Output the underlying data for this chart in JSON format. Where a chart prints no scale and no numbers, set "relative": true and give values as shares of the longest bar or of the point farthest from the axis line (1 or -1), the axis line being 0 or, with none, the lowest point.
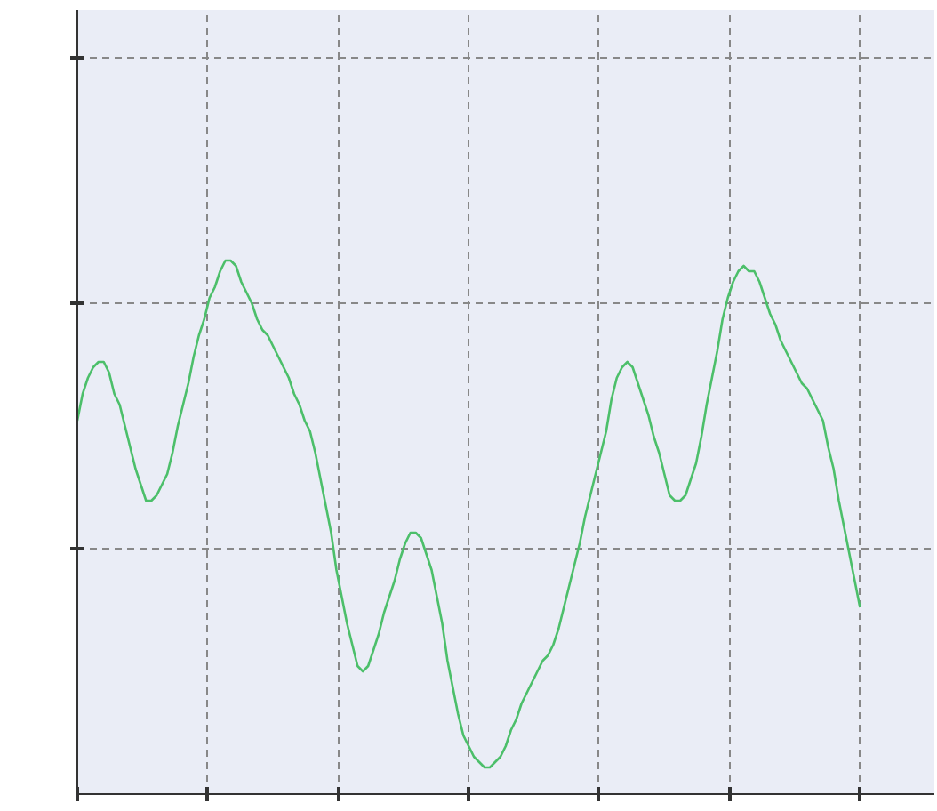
{
  "chart_data": {
    "type": "line",
    "relative": true,
    "grid": true,
    "color": "#4cbf6a",
    "values": [
      0.7,
      0.75,
      0.78,
      0.8,
      0.81,
      0.81,
      0.79,
      0.75,
      0.73,
      0.69,
      0.65,
      0.61,
      0.58,
      0.55,
      0.55,
      0.56,
      0.58,
      0.6,
      0.64,
      0.69,
      0.73,
      0.77,
      0.82,
      0.86,
      0.89,
      0.93,
      0.95,
      0.98,
      1.0,
      1.0,
      0.99,
      0.96,
      0.94,
      0.92,
      0.89,
      0.87,
      0.86,
      0.84,
      0.82,
      0.8,
      0.78,
      0.75,
      0.73,
      0.7,
      0.68,
      0.64,
      0.59,
      0.54,
      0.49,
      0.42,
      0.37,
      0.32,
      0.28,
      0.24,
      0.23,
      0.24,
      0.27,
      0.3,
      0.34,
      0.37,
      0.4,
      0.44,
      0.47,
      0.49,
      0.49,
      0.48,
      0.45,
      0.42,
      0.37,
      0.32,
      0.25,
      0.2,
      0.15,
      0.11,
      0.09,
      0.07,
      0.06,
      0.05,
      0.05,
      0.06,
      0.07,
      0.09,
      0.12,
      0.14,
      0.17,
      0.19,
      0.21,
      0.23,
      0.25,
      0.26,
      0.28,
      0.31,
      0.35,
      0.39,
      0.43,
      0.47,
      0.52,
      0.56,
      0.6,
      0.64,
      0.68,
      0.74,
      0.78,
      0.8,
      0.81,
      0.8,
      0.77,
      0.74,
      0.71,
      0.67,
      0.64,
      0.6,
      0.56,
      0.55,
      0.55,
      0.56,
      0.59,
      0.62,
      0.67,
      0.73,
      0.78,
      0.83,
      0.89,
      0.93,
      0.96,
      0.98,
      0.99,
      0.98,
      0.98,
      0.96,
      0.93,
      0.9,
      0.88,
      0.85,
      0.83,
      0.81,
      0.79,
      0.77,
      0.76,
      0.74,
      0.72,
      0.7,
      0.65,
      0.61,
      0.55,
      0.5,
      0.45,
      0.4,
      0.35
    ]
  }
}
